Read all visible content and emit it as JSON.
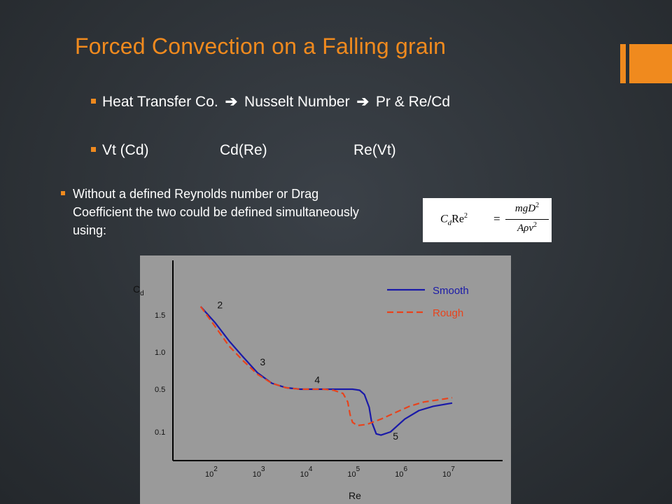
{
  "slide": {
    "title": "Forced Convection on a Falling grain",
    "colors": {
      "accent": "#f08a1e",
      "background": "#2e3338",
      "text": "#ffffff"
    }
  },
  "bullets": {
    "b1": {
      "a": "Heat Transfer Co.",
      "b": "Nusselt Number",
      "c": "Pr & Re/Cd",
      "arrow": "➔"
    },
    "b2": {
      "a": "Vt (Cd)",
      "b": "Cd(Re)",
      "c": "Re(Vt)"
    },
    "b3": {
      "text": "Without a defined Reynolds number or Drag Coefficient the two could be defined simultaneously using:"
    }
  },
  "equation": {
    "lhs_c": "C",
    "lhs_d": "d",
    "lhs_re": "Re",
    "lhs_exp": "2",
    "eq": "=",
    "num": "mgD",
    "num_exp": "2",
    "den": "Aρν",
    "den_exp": "2"
  },
  "chart_data": {
    "type": "line",
    "xlabel": "Re",
    "ylabel": "Cd",
    "ylabel_sub": "d",
    "ylabel_main": "C",
    "x_ticks": [
      2,
      3,
      4,
      5,
      6,
      7
    ],
    "x_tick_base": "10",
    "y_ticks": [
      "1.5",
      "1.0",
      "0.5",
      "0.1"
    ],
    "y_tick_values": [
      1.5,
      1.0,
      0.5,
      0.1
    ],
    "legend_position": "top-right",
    "point_labels": [
      {
        "label": "2",
        "x": 2.05,
        "y": 1.58
      },
      {
        "label": "3",
        "x": 2.95,
        "y": 0.82
      },
      {
        "label": "4",
        "x": 4.1,
        "y": 0.58
      },
      {
        "label": "5",
        "x": 5.75,
        "y": -0.02
      }
    ],
    "series": [
      {
        "name": "Smooth",
        "color": "#1a1aa8",
        "dash": "solid",
        "x": [
          1.7,
          2.0,
          2.3,
          2.6,
          2.9,
          3.2,
          3.5,
          3.8,
          4.0,
          4.3,
          4.6,
          4.9,
          5.05,
          5.15,
          5.25,
          5.3,
          5.4,
          5.5,
          5.7,
          6.0,
          6.3,
          6.6,
          7.0
        ],
        "y": [
          1.6,
          1.4,
          1.15,
          0.93,
          0.72,
          0.58,
          0.52,
          0.5,
          0.5,
          0.5,
          0.5,
          0.5,
          0.49,
          0.45,
          0.33,
          0.2,
          0.07,
          0.05,
          0.1,
          0.22,
          0.3,
          0.34,
          0.37
        ]
      },
      {
        "name": "Rough",
        "color": "#e8431c",
        "dash": "dashed",
        "x": [
          1.7,
          2.0,
          2.3,
          2.6,
          2.9,
          3.2,
          3.5,
          3.8,
          4.0,
          4.3,
          4.5,
          4.7,
          4.8,
          4.85,
          4.9,
          5.0,
          5.2,
          5.5,
          5.8,
          6.1,
          6.4,
          6.7,
          7.0
        ],
        "y": [
          1.6,
          1.35,
          1.08,
          0.88,
          0.7,
          0.58,
          0.52,
          0.5,
          0.5,
          0.5,
          0.49,
          0.46,
          0.38,
          0.26,
          0.19,
          0.16,
          0.17,
          0.22,
          0.28,
          0.34,
          0.38,
          0.4,
          0.42
        ]
      }
    ]
  }
}
